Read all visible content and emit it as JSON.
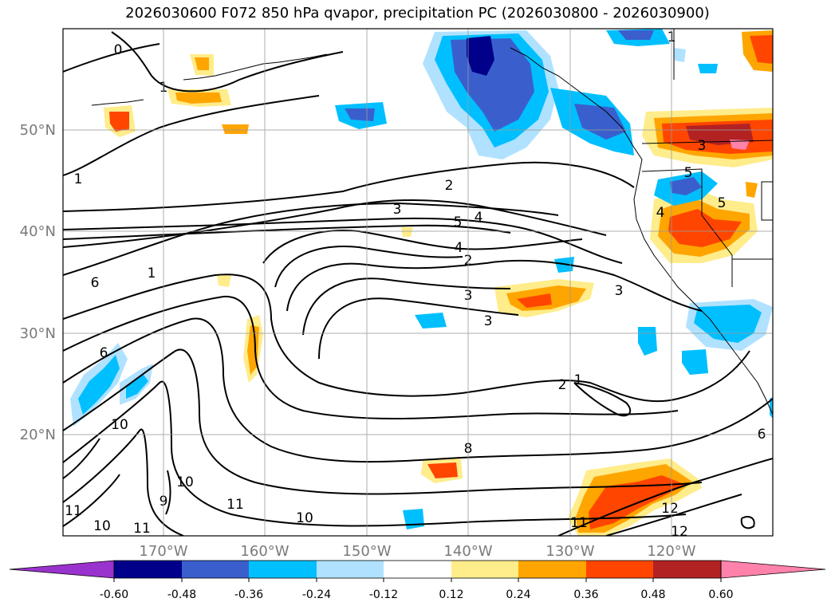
{
  "title": "2026030600 F072 850 hPa qvapor, precipitation PC (2026030800 - 2026030900)",
  "lat_ticks": [
    "50°N",
    "40°N",
    "30°N",
    "20°N"
  ],
  "lon_ticks": [
    "170°W",
    "160°W",
    "150°W",
    "140°W",
    "130°W",
    "120°W"
  ],
  "colorbar": {
    "labels": [
      "-0.60",
      "-0.48",
      "-0.36",
      "-0.24",
      "-0.12",
      "0.12",
      "0.24",
      "0.36",
      "0.48",
      "0.60"
    ],
    "colors": [
      "#9a32cd",
      "#00008b",
      "#3a5fcd",
      "#00bfff",
      "#b0e2ff",
      "#ffffff",
      "#ffec8b",
      "#ffa500",
      "#ff4500",
      "#b22222",
      "#ff82ab"
    ]
  },
  "contour_labels": [
    "0",
    "1",
    "1",
    "2",
    "3",
    "4",
    "5",
    "4",
    "2",
    "3",
    "3",
    "3",
    "2",
    "1",
    "6",
    "1",
    "6",
    "10",
    "8",
    "9",
    "10",
    "11",
    "11",
    "10",
    "11",
    "10",
    "11",
    "12",
    "12",
    "5",
    "4",
    "5",
    "3",
    "1",
    "6"
  ]
}
